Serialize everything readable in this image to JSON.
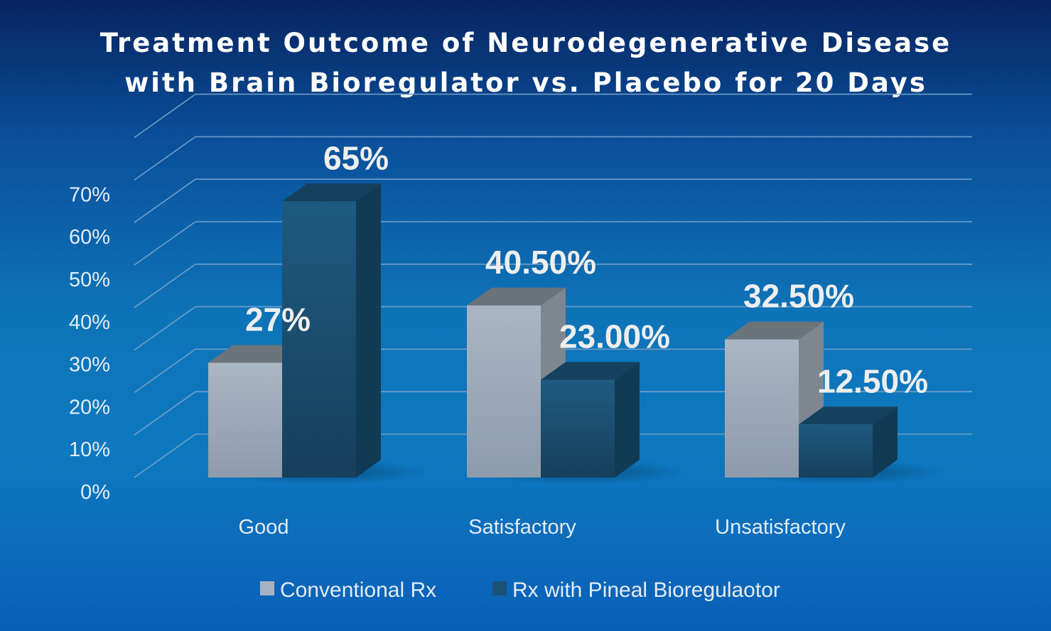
{
  "colors": {
    "grid": "#6f9ec9",
    "series_front": [
      "#a7b3c2",
      "#1b5175"
    ],
    "series_side": [
      "#7e8790",
      "#113a55"
    ],
    "series_top": [
      "#6b737b",
      "#15415e"
    ],
    "text": "#e4ecf6"
  },
  "chart_data": {
    "type": "bar",
    "title": "Treatment Outcome of Neurodegenerative Disease with Brain Bioregulator vs. Placebo for 20 Days",
    "title_lines": [
      "Treatment Outcome of Neurodegenerative Disease",
      "with Brain Bioregulator vs. Placebo for 20 Days"
    ],
    "categories": [
      "Good",
      "Satisfactory",
      "Unsatisfactory"
    ],
    "series": [
      {
        "name": "Conventional Rx",
        "values": [
          27,
          40.5,
          32.5
        ],
        "labels": [
          "27%",
          "40.50%",
          "32.50%"
        ]
      },
      {
        "name": "Rx with Pineal Bioregulaotor",
        "values": [
          65,
          23,
          12.5
        ],
        "labels": [
          "65%",
          "23.00%",
          "12.50%"
        ]
      }
    ],
    "yticks": [
      "0%",
      "10%",
      "20%",
      "30%",
      "40%",
      "50%",
      "60%",
      "70%"
    ],
    "ylim": [
      0,
      80
    ],
    "xlabel": "",
    "ylabel": "",
    "grid": true,
    "legend_position": "bottom",
    "style": "3d-clustered-column"
  }
}
